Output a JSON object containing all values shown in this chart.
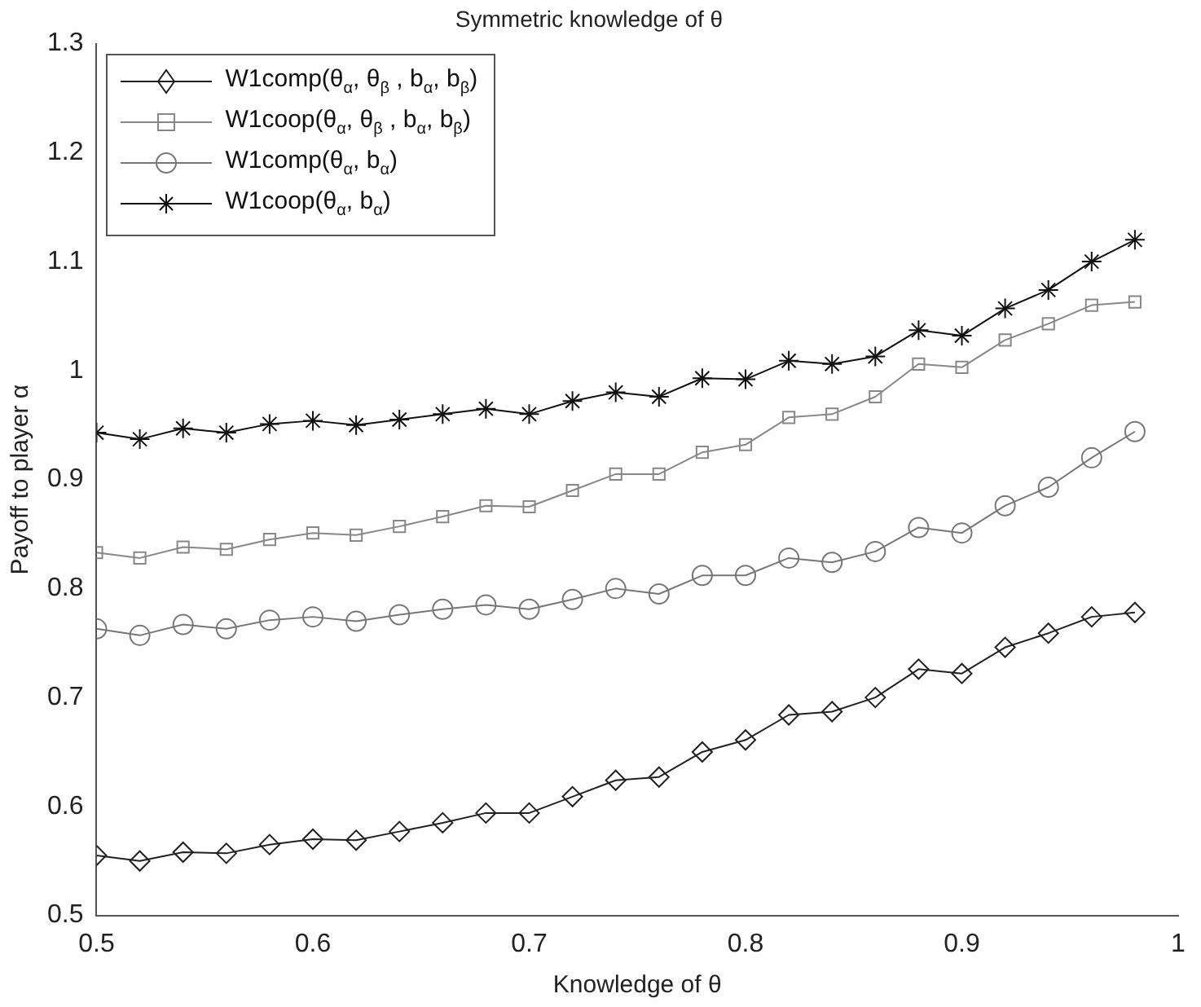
{
  "chart_data": {
    "type": "line",
    "title": "Symmetric knowledge of θ",
    "xlabel": "Knowledge of θ",
    "ylabel": "Payoff to player α",
    "x": [
      0.5,
      0.52,
      0.54,
      0.56,
      0.58,
      0.6,
      0.62,
      0.64,
      0.66,
      0.68,
      0.7,
      0.72,
      0.74,
      0.76,
      0.78,
      0.8,
      0.82,
      0.84,
      0.86,
      0.88,
      0.9,
      0.92,
      0.94,
      0.96,
      0.98
    ],
    "xlim": [
      0.5,
      1
    ],
    "xticks": [
      0.5,
      0.6,
      0.7,
      0.8,
      0.9,
      1
    ],
    "ylim": [
      0.5,
      1.3
    ],
    "yticks": [
      0.5,
      0.6,
      0.7,
      0.8,
      0.9,
      1,
      1.1,
      1.2,
      1.3
    ],
    "grid": false,
    "legend": "top left",
    "line_style": "solid",
    "series": [
      {
        "name": "W1comp(θ$_{α}$, θ$_{β}$ , b$_{α}$, b$_{β}$)",
        "color": "#222222",
        "marker": "diamond",
        "values": [
          0.555,
          0.55,
          0.558,
          0.557,
          0.565,
          0.57,
          0.569,
          0.577,
          0.585,
          0.594,
          0.594,
          0.609,
          0.624,
          0.627,
          0.65,
          0.661,
          0.684,
          0.687,
          0.7,
          0.726,
          0.722,
          0.746,
          0.759,
          0.774,
          0.778
        ]
      },
      {
        "name": "W1coop(θ$_{α}$, θ$_{β}$ , b$_{α}$, b$_{β}$)",
        "color": "#888888",
        "marker": "square",
        "values": [
          0.833,
          0.828,
          0.838,
          0.836,
          0.845,
          0.851,
          0.849,
          0.857,
          0.866,
          0.876,
          0.875,
          0.89,
          0.905,
          0.905,
          0.925,
          0.932,
          0.957,
          0.96,
          0.976,
          1.006,
          1.003,
          1.028,
          1.043,
          1.06,
          1.063
        ]
      },
      {
        "name": "W1comp(θ$_{α}$, b$_{α}$)",
        "color": "#777777",
        "marker": "circle",
        "values": [
          0.763,
          0.757,
          0.767,
          0.763,
          0.771,
          0.774,
          0.77,
          0.776,
          0.781,
          0.785,
          0.781,
          0.79,
          0.8,
          0.795,
          0.812,
          0.812,
          0.828,
          0.824,
          0.834,
          0.856,
          0.851,
          0.876,
          0.893,
          0.92,
          0.944
        ]
      },
      {
        "name": "W1coop(θ$_{α}$, b$_{α}$)",
        "color": "#111111",
        "marker": "cross",
        "values": [
          0.943,
          0.937,
          0.947,
          0.943,
          0.951,
          0.954,
          0.95,
          0.955,
          0.96,
          0.965,
          0.96,
          0.972,
          0.98,
          0.976,
          0.993,
          0.992,
          1.009,
          1.006,
          1.013,
          1.037,
          1.032,
          1.057,
          1.074,
          1.1,
          1.12
        ]
      }
    ]
  }
}
